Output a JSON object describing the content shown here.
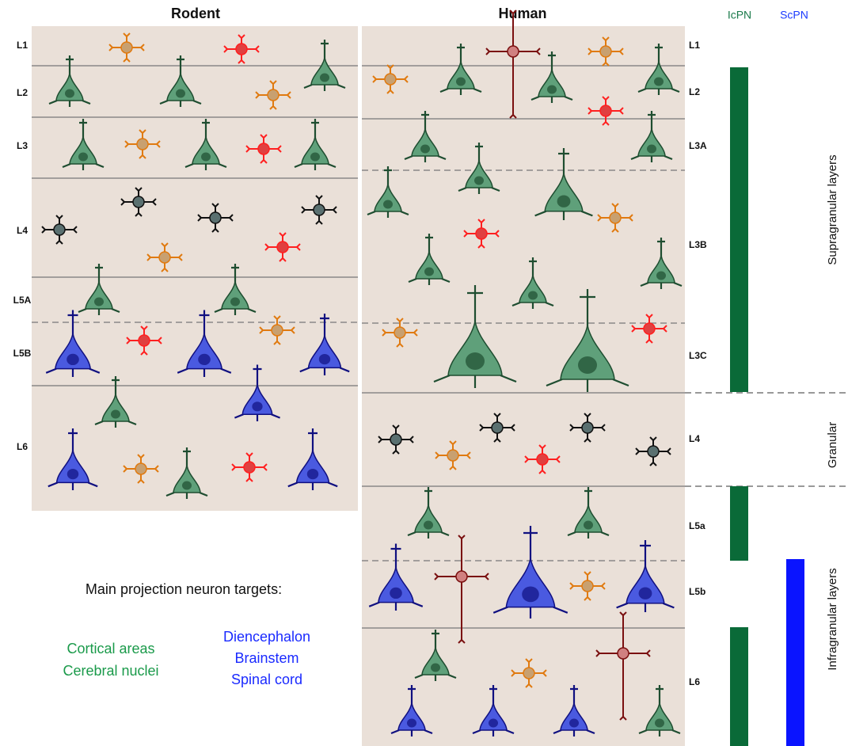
{
  "header": {
    "rodent": "Rodent",
    "human": "Human",
    "icpn": "IcPN",
    "scpn": "ScPN"
  },
  "rodent_layers": [
    "L1",
    "L2",
    "L3",
    "L4",
    "L5A",
    "L5B",
    "L6"
  ],
  "human_layers": [
    "L1",
    "L2",
    "L3A",
    "L3B",
    "L3C",
    "L4",
    "L5a",
    "L5b",
    "L6"
  ],
  "zones": [
    "Supragranular layers",
    "Granular",
    "Infragranular layers"
  ],
  "legend": {
    "title": "Main projection neuron targets:",
    "cortical": [
      "Cortical areas",
      "Cerebral nuclei"
    ],
    "subcortical": [
      "Diencephalon",
      "Brainstem",
      "Spinal cord"
    ]
  }
}
